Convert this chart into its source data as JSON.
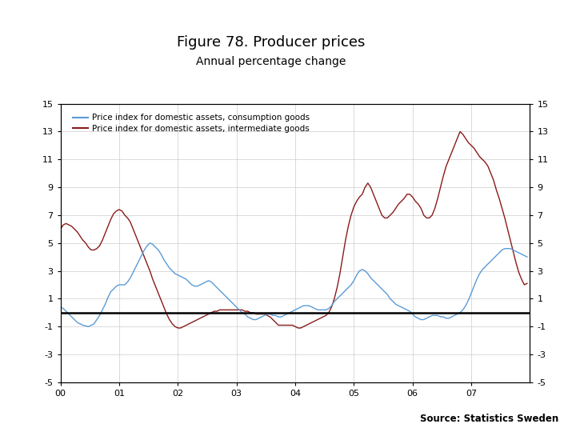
{
  "title": "Figure 78. Producer prices",
  "subtitle": "Annual percentage change",
  "source": "Source: Statistics Sweden",
  "legend": [
    "Price index for domestic assets, consumption goods",
    "Price index for domestic assets, intermediate goods"
  ],
  "line_colors": [
    "#5B9BD5",
    "#8B1A1A"
  ],
  "ylim": [
    -5,
    15
  ],
  "yticks": [
    -5,
    -3,
    -1,
    1,
    3,
    5,
    7,
    9,
    11,
    13,
    15
  ],
  "zero_line_y": 0,
  "background_color": "#ffffff",
  "footer_bar_color": "#1F3864",
  "title_fontsize": 13,
  "subtitle_fontsize": 10,
  "tick_fontsize": 8,
  "legend_fontsize": 7.5,
  "consumption_data": [
    0.4,
    0.3,
    0.1,
    -0.1,
    -0.3,
    -0.5,
    -0.7,
    -0.8,
    -0.9,
    -0.95,
    -1.0,
    -0.9,
    -0.8,
    -0.5,
    -0.2,
    0.2,
    0.6,
    1.1,
    1.5,
    1.7,
    1.9,
    2.0,
    2.0,
    2.0,
    2.2,
    2.5,
    2.9,
    3.3,
    3.7,
    4.1,
    4.5,
    4.8,
    5.0,
    4.9,
    4.7,
    4.5,
    4.2,
    3.8,
    3.5,
    3.2,
    3.0,
    2.8,
    2.7,
    2.6,
    2.5,
    2.4,
    2.2,
    2.0,
    1.9,
    1.9,
    2.0,
    2.1,
    2.2,
    2.3,
    2.2,
    2.0,
    1.8,
    1.6,
    1.4,
    1.2,
    1.0,
    0.8,
    0.6,
    0.4,
    0.2,
    0.0,
    -0.1,
    -0.3,
    -0.4,
    -0.5,
    -0.5,
    -0.4,
    -0.3,
    -0.2,
    -0.1,
    -0.1,
    -0.2,
    -0.2,
    -0.3,
    -0.3,
    -0.2,
    -0.1,
    0.0,
    0.1,
    0.2,
    0.3,
    0.4,
    0.5,
    0.5,
    0.5,
    0.4,
    0.3,
    0.2,
    0.2,
    0.2,
    0.2,
    0.3,
    0.5,
    0.8,
    1.0,
    1.2,
    1.4,
    1.6,
    1.8,
    2.0,
    2.3,
    2.7,
    3.0,
    3.1,
    3.0,
    2.8,
    2.5,
    2.3,
    2.1,
    1.9,
    1.7,
    1.5,
    1.3,
    1.0,
    0.8,
    0.6,
    0.5,
    0.4,
    0.3,
    0.2,
    0.1,
    -0.1,
    -0.3,
    -0.4,
    -0.5,
    -0.5,
    -0.4,
    -0.3,
    -0.2,
    -0.2,
    -0.2,
    -0.3,
    -0.3,
    -0.4,
    -0.4,
    -0.3,
    -0.2,
    -0.1,
    0.0,
    0.2,
    0.5,
    0.9,
    1.4,
    1.9,
    2.4,
    2.8,
    3.1,
    3.3,
    3.5,
    3.7,
    3.9,
    4.1,
    4.3,
    4.5,
    4.6,
    4.6,
    4.6,
    4.5,
    4.4,
    4.3,
    4.2,
    4.1,
    4.0
  ],
  "intermediate_data": [
    6.0,
    6.3,
    6.4,
    6.3,
    6.2,
    6.0,
    5.8,
    5.5,
    5.2,
    5.0,
    4.7,
    4.5,
    4.5,
    4.6,
    4.8,
    5.2,
    5.7,
    6.2,
    6.7,
    7.1,
    7.3,
    7.4,
    7.3,
    7.0,
    6.8,
    6.5,
    6.0,
    5.5,
    5.0,
    4.5,
    4.0,
    3.5,
    3.0,
    2.4,
    1.9,
    1.4,
    0.9,
    0.4,
    -0.1,
    -0.5,
    -0.8,
    -1.0,
    -1.1,
    -1.1,
    -1.0,
    -0.9,
    -0.8,
    -0.7,
    -0.6,
    -0.5,
    -0.4,
    -0.3,
    -0.2,
    -0.1,
    0.0,
    0.1,
    0.1,
    0.2,
    0.2,
    0.2,
    0.2,
    0.2,
    0.2,
    0.2,
    0.2,
    0.2,
    0.1,
    0.1,
    0.0,
    0.0,
    -0.1,
    -0.1,
    -0.1,
    -0.1,
    -0.2,
    -0.3,
    -0.5,
    -0.7,
    -0.9,
    -0.9,
    -0.9,
    -0.9,
    -0.9,
    -0.9,
    -1.0,
    -1.1,
    -1.1,
    -1.0,
    -0.9,
    -0.8,
    -0.7,
    -0.6,
    -0.5,
    -0.4,
    -0.3,
    -0.2,
    0.0,
    0.4,
    1.0,
    1.8,
    2.8,
    4.0,
    5.2,
    6.2,
    7.0,
    7.6,
    8.0,
    8.3,
    8.5,
    9.0,
    9.3,
    9.0,
    8.5,
    8.0,
    7.5,
    7.0,
    6.8,
    6.8,
    7.0,
    7.2,
    7.5,
    7.8,
    8.0,
    8.2,
    8.5,
    8.5,
    8.3,
    8.0,
    7.8,
    7.5,
    7.0,
    6.8,
    6.8,
    7.0,
    7.5,
    8.2,
    9.0,
    9.8,
    10.5,
    11.0,
    11.5,
    12.0,
    12.5,
    13.0,
    12.8,
    12.5,
    12.2,
    12.0,
    11.8,
    11.5,
    11.2,
    11.0,
    10.8,
    10.5,
    10.0,
    9.5,
    8.8,
    8.2,
    7.5,
    6.8,
    6.0,
    5.2,
    4.4,
    3.6,
    2.9,
    2.4,
    2.0,
    2.1
  ]
}
